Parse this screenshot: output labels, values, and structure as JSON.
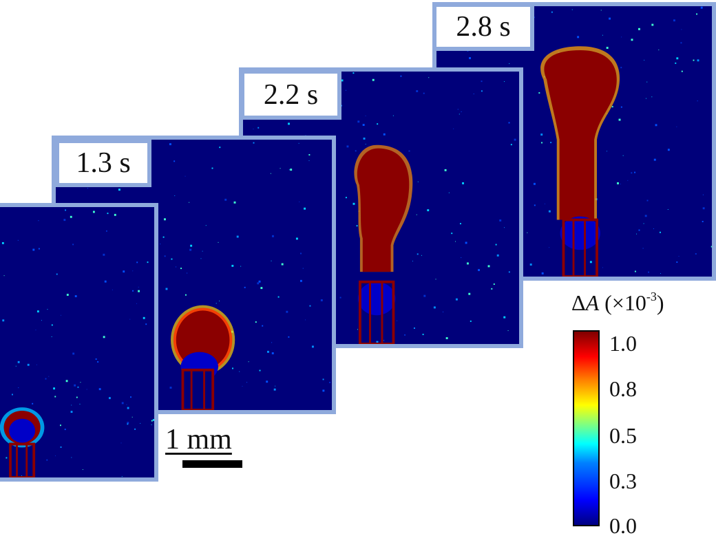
{
  "panels": [
    {
      "id": "panel-1",
      "time_label": ""
    },
    {
      "id": "panel-2",
      "time_label": "1.3 s"
    },
    {
      "id": "panel-3",
      "time_label": "2.2 s"
    },
    {
      "id": "panel-4",
      "time_label": "2.8 s"
    }
  ],
  "scale_bar": {
    "label": "1 mm"
  },
  "colorbar": {
    "title_symbol": "Δ",
    "title_var": "A",
    "title_unit_open": " (×10",
    "title_exp": "-3",
    "title_close": ")",
    "ticks": [
      "1.0",
      "0.8",
      "0.5",
      "0.3",
      "0.0"
    ],
    "colors": [
      "#000082",
      "#0000ff",
      "#00ffff",
      "#ffff00",
      "#ff0000",
      "#800000"
    ]
  },
  "colors": {
    "frame": "#8faadc",
    "background_signal": "#00007a",
    "plume": "#8b0000"
  }
}
